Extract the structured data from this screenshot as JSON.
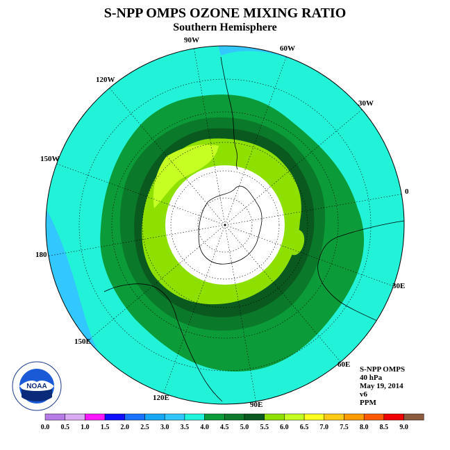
{
  "title": "S-NPP OMPS OZONE MIXING RATIO",
  "subtitle": "Southern Hemisphere",
  "longitude_labels": [
    "90W",
    "60W",
    "30W",
    "0",
    "30E",
    "60E",
    "90E",
    "120E",
    "150E",
    "180",
    "150W",
    "120W"
  ],
  "info": {
    "instrument": "S-NPP OMPS",
    "level": "40 hPa",
    "date": "May 19, 2014",
    "version": "v6",
    "units": "PPM"
  },
  "logo_text": "NOAA",
  "colorbar": {
    "ticks": [
      "0.0",
      "0.5",
      "1.0",
      "1.5",
      "2.0",
      "2.5",
      "3.0",
      "3.5",
      "4.0",
      "4.5",
      "5.0",
      "5.5",
      "6.0",
      "6.5",
      "7.0",
      "7.5",
      "8.0",
      "8.5",
      "9.0"
    ],
    "colors": [
      "#b77be8",
      "#d9a9f3",
      "#ff18ff",
      "#1010ff",
      "#1a72ff",
      "#16a8f5",
      "#32c8ff",
      "#22f4dc",
      "#0b9c39",
      "#0e7b2c",
      "#0a5a1f",
      "#8ee000",
      "#c6ff22",
      "#ffff22",
      "#ffc914",
      "#ff9c00",
      "#ff5a00",
      "#f00000",
      "#8c5a3c"
    ]
  },
  "map": {
    "background_color": "#22f2d8",
    "contour_colors": [
      "#32c8ff",
      "#0b9c39",
      "#0a7a2a",
      "#0a5a1f",
      "#8ee000",
      "#c6ff22"
    ],
    "missing_color": "#ffffff"
  }
}
